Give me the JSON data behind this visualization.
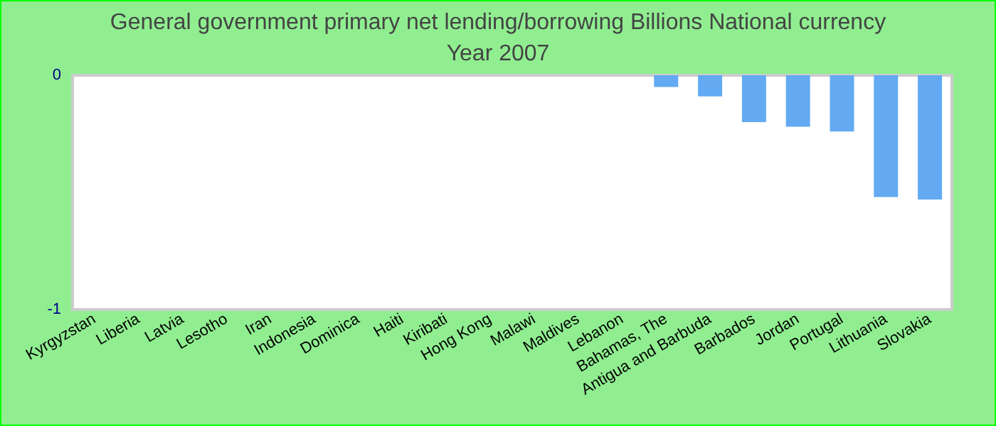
{
  "chart_data": {
    "type": "bar",
    "title": "General government primary net lending/borrowing Billions National currency",
    "subtitle": "Year 2007",
    "categories": [
      "Kyrgyzstan",
      "Liberia",
      "Latvia",
      "Lesotho",
      "Iran",
      "Indonesia",
      "Dominica",
      "Haiti",
      "Kiribati",
      "Hong Kong",
      "Malawi",
      "Maldives",
      "Lebanon",
      "Bahamas, The",
      "Antigua and Barbuda",
      "Barbados",
      "Jordan",
      "Portugal",
      "Lithuania",
      "Slovakia"
    ],
    "values": [
      0,
      0,
      0,
      0,
      0,
      0,
      0,
      0,
      0,
      0,
      0,
      0,
      0,
      -0.05,
      -0.09,
      -0.2,
      -0.22,
      -0.24,
      -0.52,
      -0.53
    ],
    "color": "#63aaf3",
    "ylim": [
      -1,
      0
    ],
    "yticks": [
      -1,
      0
    ],
    "grid": false
  }
}
